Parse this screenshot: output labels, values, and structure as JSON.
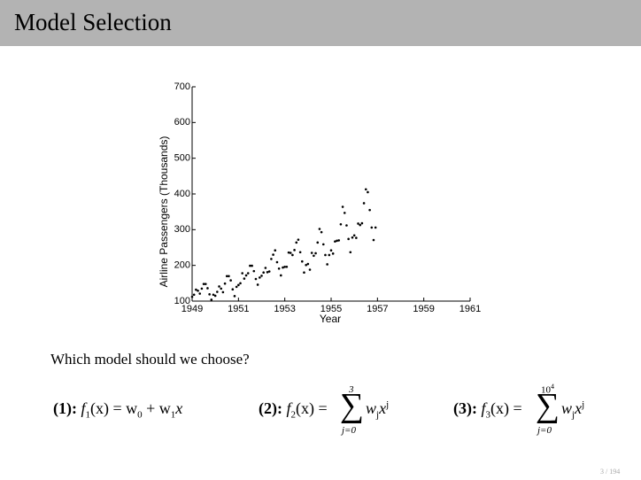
{
  "header": {
    "title": "Model Selection"
  },
  "chart_data": {
    "type": "scatter",
    "x_label": "Year",
    "y_label": "Airline Passengers (Thousands)",
    "xlim": [
      1949,
      1961
    ],
    "xticks": [
      1949,
      1951,
      1953,
      1955,
      1957,
      1959,
      1961
    ],
    "ylim": [
      100,
      700
    ],
    "yticks": [
      100,
      200,
      300,
      400,
      500,
      600,
      700
    ],
    "color": "#000000",
    "x": [
      1949.0,
      1949.083,
      1949.167,
      1949.25,
      1949.333,
      1949.417,
      1949.5,
      1949.583,
      1949.667,
      1949.75,
      1949.833,
      1949.917,
      1950.0,
      1950.083,
      1950.167,
      1950.25,
      1950.333,
      1950.417,
      1950.5,
      1950.583,
      1950.667,
      1950.75,
      1950.833,
      1950.917,
      1951.0,
      1951.083,
      1951.167,
      1951.25,
      1951.333,
      1951.417,
      1951.5,
      1951.583,
      1951.667,
      1951.75,
      1951.833,
      1951.917,
      1952.0,
      1952.083,
      1952.167,
      1952.25,
      1952.333,
      1952.417,
      1952.5,
      1952.583,
      1952.667,
      1952.75,
      1952.833,
      1952.917,
      1953.0,
      1953.083,
      1953.167,
      1953.25,
      1953.333,
      1953.417,
      1953.5,
      1953.583,
      1953.667,
      1953.75,
      1953.833,
      1953.917,
      1954.0,
      1954.083,
      1954.167,
      1954.25,
      1954.333,
      1954.417,
      1954.5,
      1954.583,
      1954.667,
      1954.75,
      1954.833,
      1954.917,
      1955.0,
      1955.083,
      1955.167,
      1955.25,
      1955.333,
      1955.417,
      1955.5,
      1955.583,
      1955.667,
      1955.75,
      1955.833,
      1955.917,
      1956.0,
      1956.083,
      1956.167,
      1956.25,
      1956.333,
      1956.417,
      1956.5,
      1956.583,
      1956.667,
      1956.75,
      1956.833,
      1956.917
    ],
    "values": [
      112,
      118,
      132,
      129,
      121,
      135,
      148,
      148,
      136,
      119,
      104,
      118,
      115,
      126,
      141,
      135,
      125,
      149,
      170,
      170,
      158,
      133,
      114,
      140,
      145,
      150,
      178,
      163,
      172,
      178,
      199,
      199,
      184,
      162,
      146,
      166,
      171,
      180,
      193,
      181,
      183,
      218,
      230,
      242,
      209,
      191,
      172,
      194,
      196,
      196,
      236,
      235,
      229,
      243,
      264,
      272,
      237,
      211,
      180,
      201,
      204,
      188,
      235,
      227,
      234,
      264,
      302,
      293,
      259,
      229,
      203,
      229,
      242,
      233,
      267,
      269,
      270,
      315,
      364,
      347,
      312,
      274,
      237,
      278,
      284,
      277,
      317,
      313,
      318,
      374,
      413,
      405,
      355,
      306,
      271,
      306
    ]
  },
  "question": "Which model should we choose?",
  "formulas": [
    {
      "label": "(1):",
      "parts": [
        "f",
        "1",
        "(x) = w",
        "0",
        " + w",
        "1",
        "x"
      ]
    },
    {
      "label": "(2):",
      "parts": [
        "f",
        "2",
        "(x) ="
      ],
      "sum": {
        "symbol": "∑",
        "upper": "3",
        "lower": "j=0"
      },
      "term": [
        "w",
        "j",
        "x",
        "j"
      ]
    },
    {
      "label": "(3):",
      "parts": [
        "f",
        "3",
        "(x) ="
      ],
      "sum": {
        "symbol": "∑",
        "upper": "10",
        "upper_exp": "4",
        "lower": "j=0"
      },
      "term": [
        "w",
        "j",
        "x",
        "j"
      ]
    }
  ],
  "page_number": "3 / 194"
}
